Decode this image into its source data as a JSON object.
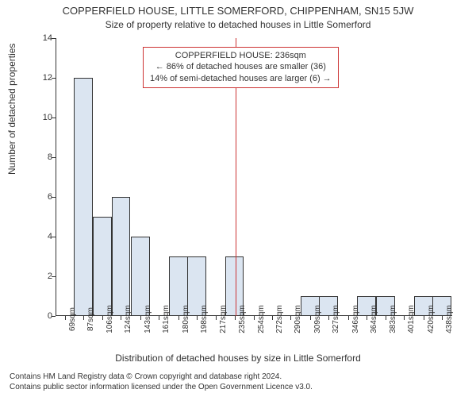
{
  "title_main": "COPPERFIELD HOUSE, LITTLE SOMERFORD, CHIPPENHAM, SN15 5JW",
  "title_sub": "Size of property relative to detached houses in Little Somerford",
  "ylabel": "Number of detached properties",
  "xlabel": "Distribution of detached houses by size in Little Somerford",
  "footer_line1": "Contains HM Land Registry data © Crown copyright and database right 2024.",
  "footer_line2": "Contains public sector information licensed under the Open Government Licence v3.0.",
  "info_box": {
    "line1": "COPPERFIELD HOUSE: 236sqm",
    "line2": "← 86% of detached houses are smaller (36)",
    "line3": "14% of semi-detached houses are larger (6) →",
    "border_color": "#cc3333",
    "text_color": "#333333",
    "bg_color": "#ffffff",
    "top_pct": 3,
    "left_pct": 22
  },
  "reference_line": {
    "x": 236,
    "color": "#cc3333"
  },
  "chart": {
    "type": "histogram",
    "ylim": [
      0,
      14
    ],
    "ytick_step": 2,
    "xlim": [
      60,
      448
    ],
    "bar_fill": "#dbe5f1",
    "bar_border": "#333333",
    "bar_width_units": 18.5,
    "grid_color": "#e0e0e0",
    "background_color": "#ffffff",
    "bins": [
      {
        "x": 69,
        "label": "69sqm",
        "count": 0
      },
      {
        "x": 87,
        "label": "87sqm",
        "count": 12
      },
      {
        "x": 106,
        "label": "106sqm",
        "count": 5
      },
      {
        "x": 124,
        "label": "124sqm",
        "count": 6
      },
      {
        "x": 143,
        "label": "143sqm",
        "count": 4
      },
      {
        "x": 161,
        "label": "161sqm",
        "count": 0
      },
      {
        "x": 180,
        "label": "180sqm",
        "count": 3
      },
      {
        "x": 198,
        "label": "198sqm",
        "count": 3
      },
      {
        "x": 217,
        "label": "217sqm",
        "count": 0
      },
      {
        "x": 235,
        "label": "235sqm",
        "count": 3
      },
      {
        "x": 254,
        "label": "254sqm",
        "count": 0
      },
      {
        "x": 272,
        "label": "272sqm",
        "count": 0
      },
      {
        "x": 290,
        "label": "290sqm",
        "count": 0
      },
      {
        "x": 309,
        "label": "309sqm",
        "count": 1
      },
      {
        "x": 327,
        "label": "327sqm",
        "count": 1
      },
      {
        "x": 346,
        "label": "346sqm",
        "count": 0
      },
      {
        "x": 364,
        "label": "364sqm",
        "count": 1
      },
      {
        "x": 383,
        "label": "383sqm",
        "count": 1
      },
      {
        "x": 401,
        "label": "401sqm",
        "count": 0
      },
      {
        "x": 420,
        "label": "420sqm",
        "count": 1
      },
      {
        "x": 438,
        "label": "438sqm",
        "count": 1
      }
    ]
  }
}
